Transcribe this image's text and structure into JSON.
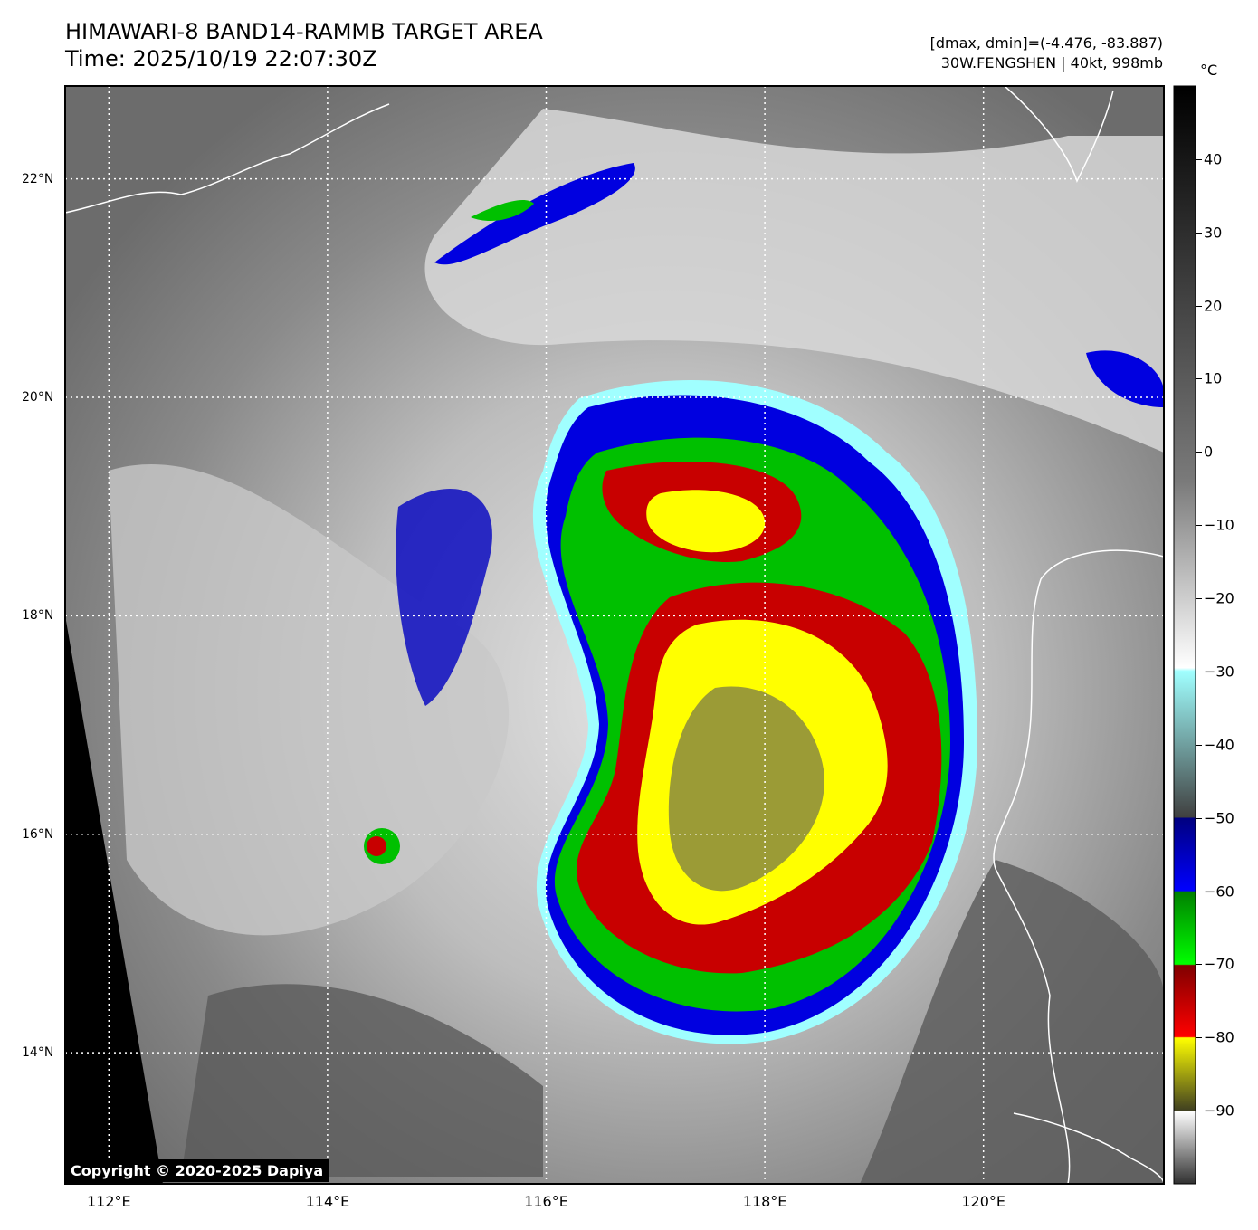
{
  "header": {
    "title_line1": "HIMAWARI-8 BAND14-RAMMB TARGET AREA",
    "title_line2": "Time: 2025/10/19 22:07:30Z",
    "info_line1": "[dmax, dmin]=(-4.476, -83.887)",
    "info_line2": "30W.FENGSHEN | 40kt, 998mb"
  },
  "colorbar": {
    "unit": "°C",
    "ticks": [
      "40",
      "30",
      "20",
      "10",
      "0",
      "−10",
      "−20",
      "−30",
      "−40",
      "−50",
      "−60",
      "−70",
      "−80",
      "−90"
    ],
    "tick_values": [
      40,
      30,
      20,
      10,
      0,
      -10,
      -20,
      -30,
      -40,
      -50,
      -60,
      -70,
      -80,
      -90
    ],
    "range": [
      -100,
      50
    ],
    "colors": {
      "warm_top": "#000000",
      "mid_grey": "#808080",
      "cold_white": "#ffffff",
      "cyan": "#a0ffff",
      "blue": "#0000c8",
      "green": "#00c800",
      "red": "#c80000",
      "yellow": "#ffff00",
      "olive": "#6e6e32"
    }
  },
  "map": {
    "lat_labels": [
      "22°N",
      "20°N",
      "18°N",
      "16°N",
      "14°N"
    ],
    "lat_values": [
      22,
      20,
      18,
      16,
      14
    ],
    "lon_labels": [
      "112°E",
      "114°E",
      "116°E",
      "118°E",
      "120°E"
    ],
    "lon_values": [
      112,
      114,
      116,
      118,
      120
    ],
    "lat_range": [
      12.8,
      22.85
    ],
    "lon_range": [
      111.6,
      121.65
    ],
    "storm_center": {
      "lat": 16.6,
      "lon": 117.9
    }
  },
  "copyright": "Copyright © 2020-2025 Dapiya"
}
